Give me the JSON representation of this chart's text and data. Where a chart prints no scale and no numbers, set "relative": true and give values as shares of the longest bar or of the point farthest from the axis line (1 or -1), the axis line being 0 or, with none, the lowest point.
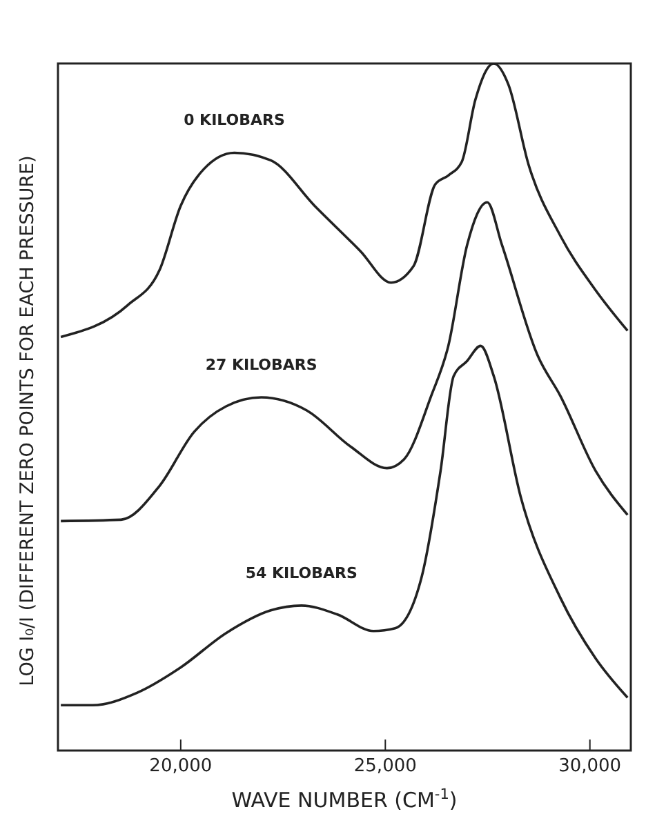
{
  "chart_data": {
    "type": "line",
    "relative": true,
    "xlabel": "WAVE NUMBER (CM$^{-1}$)",
    "ylabel": "LOG I₀/I (DIFFERENT ZERO POINTS FOR EACH PRESSURE)",
    "xlim": [
      17000,
      31000
    ],
    "xticks": [
      {
        "value": 20000,
        "label": "20,000"
      },
      {
        "value": 25000,
        "label": "25,000"
      },
      {
        "value": 30000,
        "label": "30,000"
      }
    ],
    "grid": false,
    "legend": false,
    "marker": "none",
    "line_style": "solid",
    "series": [
      {
        "name": "0 KILOBARS",
        "color": "#222222",
        "x": [
          17070,
          18700,
          19480,
          20000,
          20560,
          21310,
          22200,
          23270,
          24390,
          25140,
          25690,
          26220,
          26540,
          26870,
          27200,
          27650,
          28010,
          28500,
          29280,
          30140,
          30920
        ],
        "values": [
          0.602,
          0.648,
          0.699,
          0.793,
          0.846,
          0.87,
          0.859,
          0.793,
          0.727,
          0.681,
          0.705,
          0.824,
          0.837,
          0.857,
          0.947,
          1.0,
          0.969,
          0.853,
          0.749,
          0.67,
          0.611
        ]
      },
      {
        "name": "27 KILOBARS",
        "color": "#222222",
        "x": [
          17070,
          18540,
          19480,
          20330,
          21110,
          21970,
          23080,
          24160,
          25040,
          25460,
          26120,
          26540,
          27000,
          27490,
          27850,
          28730,
          29280,
          30140,
          30920
        ],
        "values": [
          0.334,
          0.336,
          0.385,
          0.464,
          0.501,
          0.514,
          0.495,
          0.442,
          0.411,
          0.424,
          0.516,
          0.589,
          0.736,
          0.798,
          0.736,
          0.574,
          0.516,
          0.407,
          0.343
        ]
      },
      {
        "name": "54 KILOBARS",
        "color": "#222222",
        "x": [
          17070,
          17850,
          18930,
          20000,
          21110,
          22200,
          22950,
          23830,
          24710,
          25240,
          25890,
          26350,
          26670,
          27000,
          27330,
          27650,
          28310,
          29280,
          30140,
          30920
        ],
        "values": [
          0.066,
          0.066,
          0.084,
          0.121,
          0.171,
          0.204,
          0.211,
          0.198,
          0.174,
          0.178,
          0.253,
          0.407,
          0.545,
          0.567,
          0.589,
          0.545,
          0.369,
          0.222,
          0.134,
          0.077
        ]
      }
    ]
  }
}
